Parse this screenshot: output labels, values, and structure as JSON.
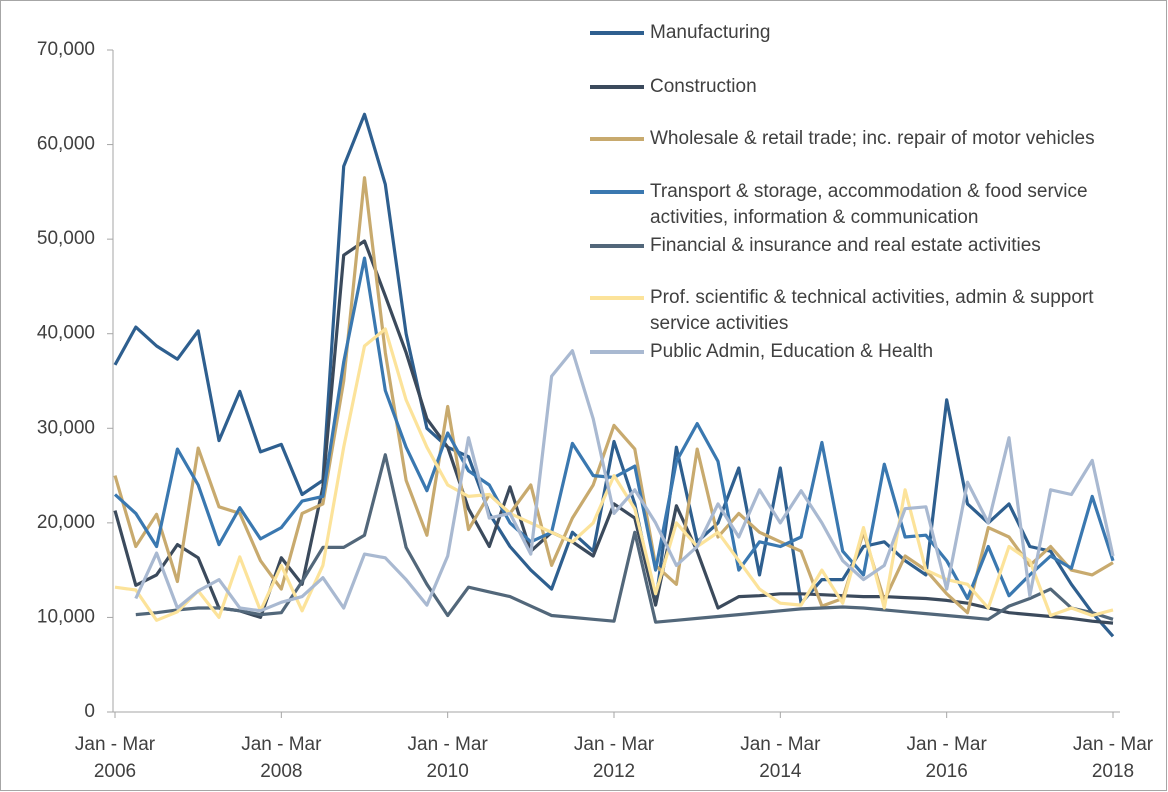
{
  "chart_data": {
    "type": "line",
    "categories": [
      "Jan - Mar 2006",
      null,
      null,
      null,
      null,
      null,
      null,
      null,
      "Jan - Mar 2008",
      null,
      null,
      null,
      null,
      null,
      null,
      null,
      "Jan - Mar 2010",
      null,
      null,
      null,
      null,
      null,
      null,
      null,
      "Jan - Mar 2012",
      null,
      null,
      null,
      null,
      null,
      null,
      null,
      "Jan - Mar 2014",
      null,
      null,
      null,
      null,
      null,
      null,
      null,
      "Jan - Mar 2016",
      null,
      null,
      null,
      null,
      null,
      null,
      null,
      "Jan - Mar 2018"
    ],
    "ylim": [
      0,
      70000
    ],
    "yticks": [
      0,
      {
        "value": 10000,
        "label": "10,000"
      },
      {
        "value": 20000,
        "label": "20,000"
      },
      {
        "value": 30000,
        "label": "30,000"
      },
      {
        "value": 40000,
        "label": "40,000"
      },
      {
        "value": 50000,
        "label": "50,000"
      },
      {
        "value": 60000,
        "label": "60,000"
      },
      {
        "value": 70000,
        "label": "70,000"
      }
    ],
    "series": [
      {
        "name": "Manufacturing",
        "color": "#2e5f8f",
        "values": [
          36700,
          40700,
          38700,
          37300,
          40300,
          28700,
          33900,
          27500,
          28300,
          23000,
          24500,
          57700,
          63200,
          55800,
          40000,
          30000,
          28000,
          27000,
          21000,
          17500,
          15000,
          13000,
          19000,
          17000,
          28600,
          22000,
          11500,
          28000,
          18000,
          20000,
          25800,
          14500,
          25800,
          11500,
          14000,
          14000,
          17500,
          18000,
          16000,
          14500,
          33000,
          22000,
          20000,
          22000,
          17500,
          17000,
          13500,
          10500,
          8000
        ]
      },
      {
        "name": "Construction",
        "color": "#3b4a5c",
        "values": [
          21300,
          13400,
          14500,
          17700,
          16300,
          11000,
          10700,
          10000,
          16300,
          13500,
          23800,
          48300,
          49800,
          44000,
          38000,
          31000,
          28000,
          21500,
          17500,
          23800,
          17000,
          19000,
          18000,
          16500,
          22000,
          20500,
          11300,
          21800,
          17000,
          11000,
          12200,
          12300,
          12500,
          12500,
          12400,
          12300,
          12200,
          12200,
          12100,
          12000,
          11800,
          11500,
          11000,
          10500,
          10300,
          10100,
          9900,
          9600,
          9400
        ]
      },
      {
        "name": "Wholesale & retail trade; inc. repair of motor vehicles",
        "color": "#c8aa6e",
        "values": [
          25000,
          17500,
          20900,
          13800,
          27900,
          21700,
          21000,
          16000,
          13000,
          21000,
          22000,
          35000,
          56500,
          38000,
          24500,
          18700,
          32300,
          19300,
          23000,
          21000,
          24000,
          15500,
          20500,
          24000,
          30300,
          27800,
          15500,
          13500,
          27800,
          18500,
          21000,
          19000,
          18000,
          17000,
          11200,
          12000,
          19000,
          11800,
          16500,
          15000,
          12500,
          10500,
          19500,
          18500,
          15500,
          17500,
          15000,
          14500,
          15800
        ]
      },
      {
        "name": "Transport & storage, accommodation & food service activities, information & communication",
        "color": "#3a78b0",
        "values": [
          23000,
          21000,
          17500,
          27800,
          24000,
          17700,
          21600,
          18300,
          19500,
          22300,
          22800,
          37000,
          48000,
          34000,
          28000,
          23400,
          29500,
          25500,
          24000,
          20000,
          18000,
          19000,
          28400,
          25000,
          24800,
          26000,
          15000,
          26500,
          30500,
          26500,
          15000,
          18000,
          17500,
          18500,
          28500,
          17000,
          14500,
          26200,
          18500,
          18700,
          16000,
          12000,
          17500,
          12300,
          14500,
          16500,
          15200,
          22800,
          16000
        ]
      },
      {
        "name": "Financial & insurance and real estate activities",
        "color": "#52677a",
        "values": [
          null,
          10300,
          10500,
          10800,
          11000,
          11000,
          10700,
          10300,
          10500,
          13800,
          17400,
          17400,
          18700,
          27200,
          17400,
          13500,
          10200,
          13200,
          12700,
          12200,
          11200,
          10200,
          10000,
          9800,
          9600,
          19000,
          9500,
          9700,
          9900,
          10100,
          10300,
          10500,
          10700,
          10900,
          11000,
          11100,
          11000,
          10800,
          10600,
          10400,
          10200,
          10000,
          9800,
          11200,
          12000,
          13000,
          11000,
          10500,
          9800
        ]
      },
      {
        "name": "Prof. scientific & technical activities, admin & support service activities",
        "color": "#fce39a",
        "values": [
          13200,
          12900,
          9700,
          10600,
          12800,
          10000,
          16400,
          10700,
          15500,
          10700,
          15500,
          28000,
          38700,
          40500,
          33000,
          28000,
          24000,
          22800,
          23000,
          21000,
          20000,
          19000,
          18000,
          20000,
          25000,
          21500,
          12500,
          20000,
          17500,
          19000,
          16000,
          13000,
          11500,
          11300,
          15000,
          11500,
          19500,
          11000,
          23500,
          15000,
          14000,
          13500,
          11000,
          17500,
          16000,
          10200,
          11000,
          10200,
          10800
        ]
      },
      {
        "name": "Public Admin, Education & Health",
        "color": "#a9b9d1",
        "values": [
          null,
          12000,
          16800,
          11000,
          12800,
          14000,
          11000,
          10700,
          11600,
          12200,
          14200,
          11000,
          16700,
          16300,
          14000,
          11300,
          16500,
          29000,
          20500,
          21000,
          16700,
          35500,
          38200,
          31000,
          21000,
          23500,
          20000,
          15500,
          17500,
          22000,
          18500,
          23500,
          20000,
          23400,
          20000,
          16000,
          14000,
          15500,
          21500,
          21700,
          13000,
          24300,
          20000,
          29000,
          12300,
          23500,
          23000,
          26600,
          16500
        ]
      }
    ]
  }
}
